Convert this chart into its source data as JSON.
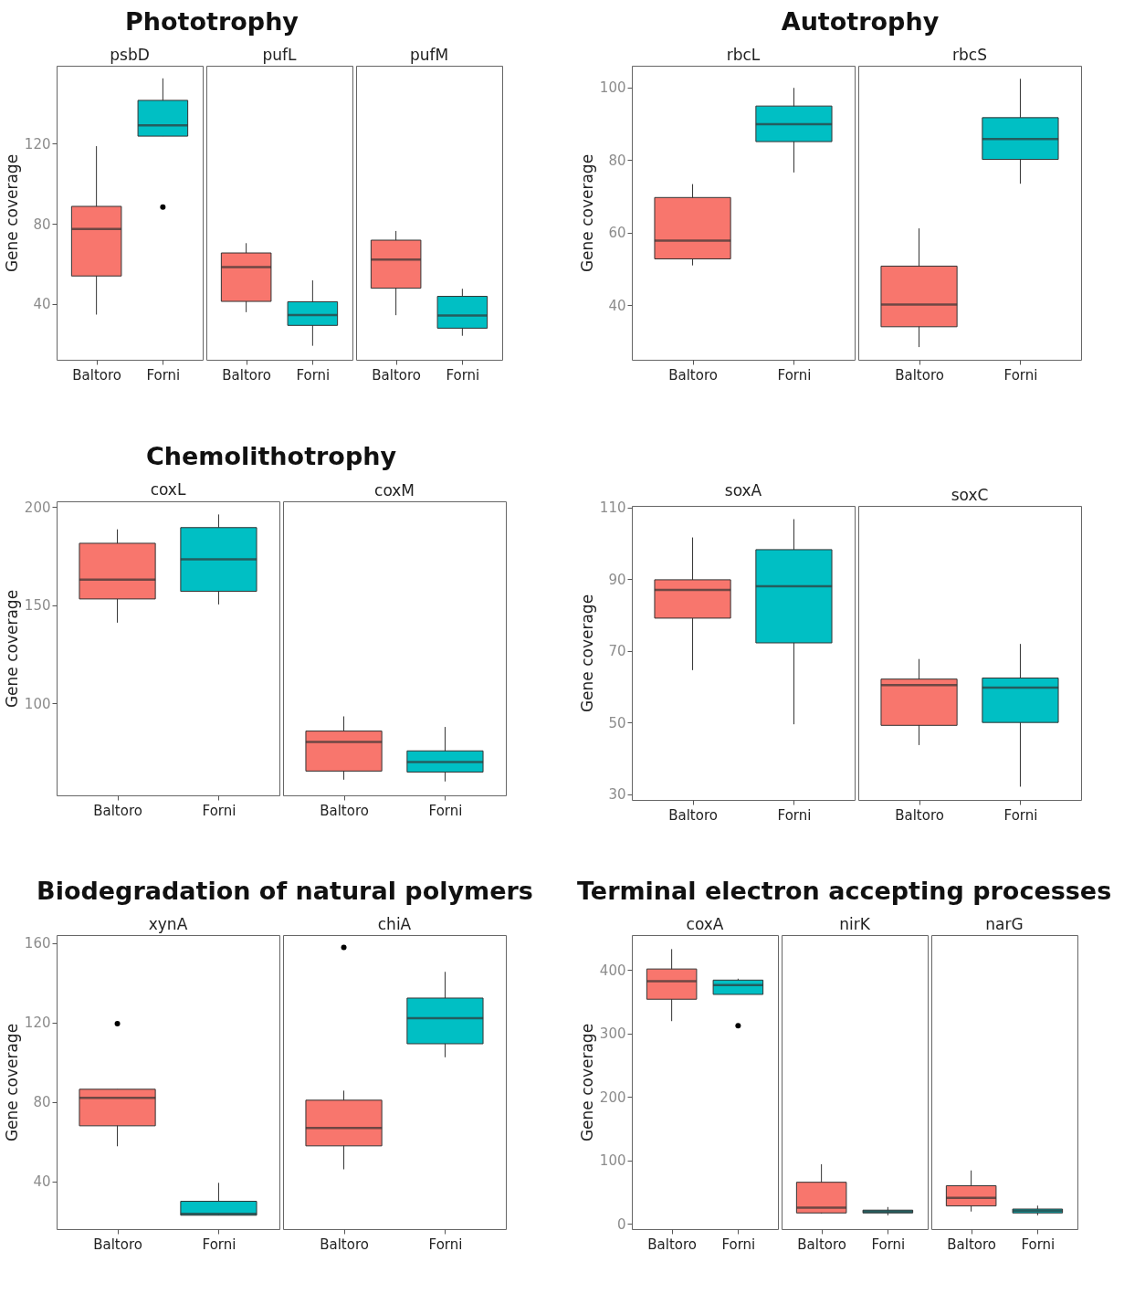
{
  "chart_data": [
    {
      "type": "box",
      "title": "Phototrophy",
      "subtitle": "psbD",
      "ylabel": "Gene coverage",
      "categories": [
        "Baltoro",
        "Forni"
      ],
      "colors": [
        "#f8766d",
        "#00bfc4"
      ],
      "ylim": [
        12,
        159
      ],
      "yticks": [
        40,
        80,
        120
      ],
      "boxes": [
        {
          "low": 34.6,
          "q1": 53.9,
          "median": 77.4,
          "q3": 88.7,
          "high": 118.8
        },
        {
          "low": 123.8,
          "q1": 123.8,
          "median": 129.2,
          "q3": 141.7,
          "high": 152.7,
          "outliers": [
            88.3
          ]
        }
      ]
    },
    {
      "type": "box",
      "subtitle": "pufL",
      "categories": [
        "Baltoro",
        "Forni"
      ],
      "colors": [
        "#f8766d",
        "#00bfc4"
      ],
      "ylim": [
        12,
        159
      ],
      "yticks": [
        40,
        80,
        120
      ],
      "tick_labels": "x",
      "boxes": [
        {
          "low": 35.8,
          "q1": 41.2,
          "median": 58.3,
          "q3": 65.4,
          "high": 70.3
        },
        {
          "low": 19,
          "q1": 29.2,
          "median": 34.4,
          "q3": 41,
          "high": 51.7
        }
      ]
    },
    {
      "type": "box",
      "subtitle": "pufM",
      "categories": [
        "Baltoro",
        "Forni"
      ],
      "colors": [
        "#f8766d",
        "#00bfc4"
      ],
      "ylim": [
        12,
        159
      ],
      "yticks": [
        40,
        80,
        120
      ],
      "tick_labels": "x",
      "boxes": [
        {
          "low": 34.3,
          "q1": 47.8,
          "median": 62.1,
          "q3": 71.8,
          "high": 76.4
        },
        {
          "low": 24,
          "q1": 27.8,
          "median": 34.1,
          "q3": 43.7,
          "high": 47.5
        }
      ]
    },
    {
      "type": "box",
      "title": "Autotrophy",
      "subtitle": "rbcL",
      "ylabel": "Gene coverage",
      "categories": [
        "Baltoro",
        "Forni"
      ],
      "colors": [
        "#f8766d",
        "#00bfc4"
      ],
      "ylim": [
        25,
        106
      ],
      "yticks": [
        40,
        60,
        80,
        100
      ],
      "boxes": [
        {
          "low": 51,
          "q1": 52.8,
          "median": 57.8,
          "q3": 69.7,
          "high": 73.4
        },
        {
          "low": 76.6,
          "q1": 85.1,
          "median": 89.9,
          "q3": 94.9,
          "high": 99.9
        }
      ]
    },
    {
      "type": "box",
      "subtitle": "rbcS",
      "categories": [
        "Baltoro",
        "Forni"
      ],
      "colors": [
        "#f8766d",
        "#00bfc4"
      ],
      "ylim": [
        25,
        106
      ],
      "yticks": [
        40,
        60,
        80,
        100
      ],
      "tick_labels": "x",
      "boxes": [
        {
          "low": 28.5,
          "q1": 34.1,
          "median": 40.2,
          "q3": 50.8,
          "high": 61.2
        },
        {
          "low": 73.5,
          "q1": 80.2,
          "median": 85.8,
          "q3": 91.7,
          "high": 102.4
        }
      ]
    },
    {
      "type": "box",
      "title": "Chemolithotrophy",
      "subtitle": "coxL",
      "ylabel": "Gene coverage",
      "categories": [
        "Baltoro",
        "Forni"
      ],
      "colors": [
        "#f8766d",
        "#00bfc4"
      ],
      "ylim": [
        53,
        203
      ],
      "yticks": [
        100,
        150,
        200
      ],
      "boxes": [
        {
          "low": 141.1,
          "q1": 153.2,
          "median": 163.1,
          "q3": 181.6,
          "high": 188.7
        },
        {
          "low": 150.4,
          "q1": 157.1,
          "median": 173.4,
          "q3": 189.6,
          "high": 196.3
        }
      ]
    },
    {
      "type": "box",
      "subtitle": "coxM",
      "categories": [
        "Baltoro",
        "Forni"
      ],
      "colors": [
        "#f8766d",
        "#00bfc4"
      ],
      "ylim": [
        53,
        203
      ],
      "yticks": [
        100,
        150,
        200
      ],
      "tick_labels": "x",
      "boxes": [
        {
          "low": 61,
          "q1": 65.4,
          "median": 80.3,
          "q3": 85.8,
          "high": 93.3
        },
        {
          "low": 60.1,
          "q1": 64.9,
          "median": 70,
          "q3": 75.7,
          "high": 87.9
        }
      ]
    },
    {
      "type": "box",
      "subtitle": "soxA",
      "ylabel": "Gene coverage",
      "categories": [
        "Baltoro",
        "Forni"
      ],
      "colors": [
        "#f8766d",
        "#00bfc4"
      ],
      "ylim": [
        28.4,
        110.4
      ],
      "yticks": [
        30,
        50,
        70,
        90,
        110
      ],
      "boxes": [
        {
          "low": 64.6,
          "q1": 79.1,
          "median": 87,
          "q3": 89.8,
          "high": 101.6
        },
        {
          "low": 49.5,
          "q1": 72.2,
          "median": 88,
          "q3": 98.2,
          "high": 106.7
        }
      ]
    },
    {
      "type": "box",
      "subtitle": "soxC",
      "categories": [
        "Baltoro",
        "Forni"
      ],
      "colors": [
        "#f8766d",
        "#00bfc4"
      ],
      "ylim": [
        28.4,
        110.4
      ],
      "yticks": [
        30,
        50,
        70,
        90,
        110
      ],
      "tick_labels": "x",
      "boxes": [
        {
          "low": 43.7,
          "q1": 49.2,
          "median": 60.4,
          "q3": 62.1,
          "high": 67.7
        },
        {
          "low": 32.1,
          "q1": 50,
          "median": 59.7,
          "q3": 62.4,
          "high": 71.9
        }
      ]
    },
    {
      "type": "box",
      "title": "Biodegradation of natural polymers",
      "subtitle": "xynA",
      "ylabel": "Gene coverage",
      "categories": [
        "Baltoro",
        "Forni"
      ],
      "colors": [
        "#f8766d",
        "#00bfc4"
      ],
      "ylim": [
        16,
        164
      ],
      "yticks": [
        40,
        80,
        120,
        160
      ],
      "boxes": [
        {
          "low": 57.7,
          "q1": 68,
          "median": 82.1,
          "q3": 86.4,
          "high": 86.4,
          "outliers": [
            119.4
          ]
        },
        {
          "low": 23,
          "q1": 23,
          "median": 23.7,
          "q3": 30,
          "high": 39.3
        }
      ]
    },
    {
      "type": "box",
      "subtitle": "chiA",
      "categories": [
        "Baltoro",
        "Forni"
      ],
      "colors": [
        "#f8766d",
        "#00bfc4"
      ],
      "ylim": [
        16,
        164
      ],
      "yticks": [
        40,
        80,
        120,
        160
      ],
      "tick_labels": "x",
      "boxes": [
        {
          "low": 46.1,
          "q1": 57.9,
          "median": 66.9,
          "q3": 80.9,
          "high": 85.7,
          "outliers": [
            157.8
          ]
        },
        {
          "low": 102.5,
          "q1": 109.3,
          "median": 122.2,
          "q3": 132.3,
          "high": 145.5
        }
      ]
    },
    {
      "type": "box",
      "title": "Terminal electron accepting processes",
      "subtitle": "coxA",
      "ylabel": "Gene coverage",
      "categories": [
        "Baltoro",
        "Forni"
      ],
      "colors": [
        "#f8766d",
        "#00bfc4"
      ],
      "ylim": [
        -8,
        455
      ],
      "yticks": [
        0,
        100,
        200,
        300,
        400
      ],
      "boxes": [
        {
          "low": 319.5,
          "q1": 354,
          "median": 382.5,
          "q3": 401.6,
          "high": 432.9
        },
        {
          "low": 361.6,
          "q1": 361.6,
          "median": 376.4,
          "q3": 384.1,
          "high": 386.3,
          "outliers": [
            312.3
          ]
        }
      ]
    },
    {
      "type": "box",
      "subtitle": "nirK",
      "categories": [
        "Baltoro",
        "Forni"
      ],
      "colors": [
        "#f8766d",
        "#00bfc4"
      ],
      "ylim": [
        -8,
        455
      ],
      "yticks": [
        0,
        100,
        200,
        300,
        400
      ],
      "tick_labels": "x",
      "boxes": [
        {
          "low": 16.4,
          "q1": 17.5,
          "median": 25.8,
          "q3": 65.8,
          "high": 94.2
        },
        {
          "low": 13.7,
          "q1": 17.5,
          "median": 19.7,
          "q3": 21.9,
          "high": 26.8
        }
      ]
    },
    {
      "type": "box",
      "subtitle": "narG",
      "categories": [
        "Baltoro",
        "Forni"
      ],
      "colors": [
        "#f8766d",
        "#00bfc4"
      ],
      "ylim": [
        -8,
        455
      ],
      "yticks": [
        0,
        100,
        200,
        300,
        400
      ],
      "tick_labels": "x",
      "boxes": [
        {
          "low": 19.7,
          "q1": 28.5,
          "median": 41.1,
          "q3": 60.3,
          "high": 84.4
        },
        {
          "low": 13.7,
          "q1": 17.5,
          "median": 20.8,
          "q3": 23.6,
          "high": 29
        }
      ]
    }
  ]
}
